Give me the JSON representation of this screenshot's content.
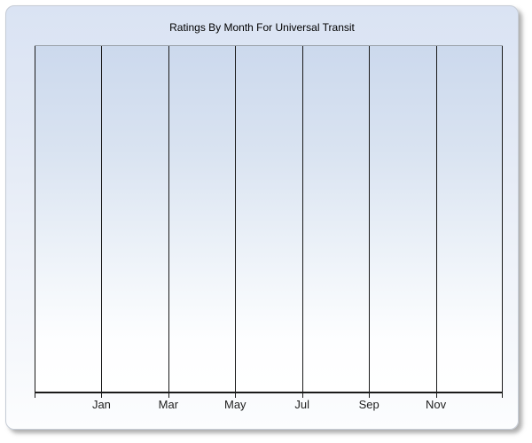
{
  "window": {
    "title": "Ratings By Month For Universal Transit"
  },
  "chart_data": {
    "type": "line",
    "title": "Ratings By Month For Universal Transit",
    "xlabel": "",
    "ylabel": "",
    "x_tick_labels": [
      "Jan",
      "Mar",
      "May",
      "Jul",
      "Sep",
      "Nov"
    ],
    "x_tick_interval_months": 2,
    "x_gridline_count": 8,
    "y_tick_labels": [],
    "series": [],
    "grid": "vertical-only",
    "legend_position": "none"
  },
  "colors": {
    "window_gradient_top": "#dae3f3",
    "window_gradient_bottom": "#fcfdfe",
    "window_border": "#c5cbd5",
    "window_shadow": "#6e6e6e",
    "plot_gradient_top": "#ccd9ed",
    "plot_gradient_bottom": "#ffffff",
    "plot_top_border": "#99a0a8",
    "gridline": "#1a1a1a",
    "axis_line": "#1a1a1a",
    "title_text": "#000000",
    "tick_label_text": "#202020",
    "page_background": "#ffffff"
  }
}
